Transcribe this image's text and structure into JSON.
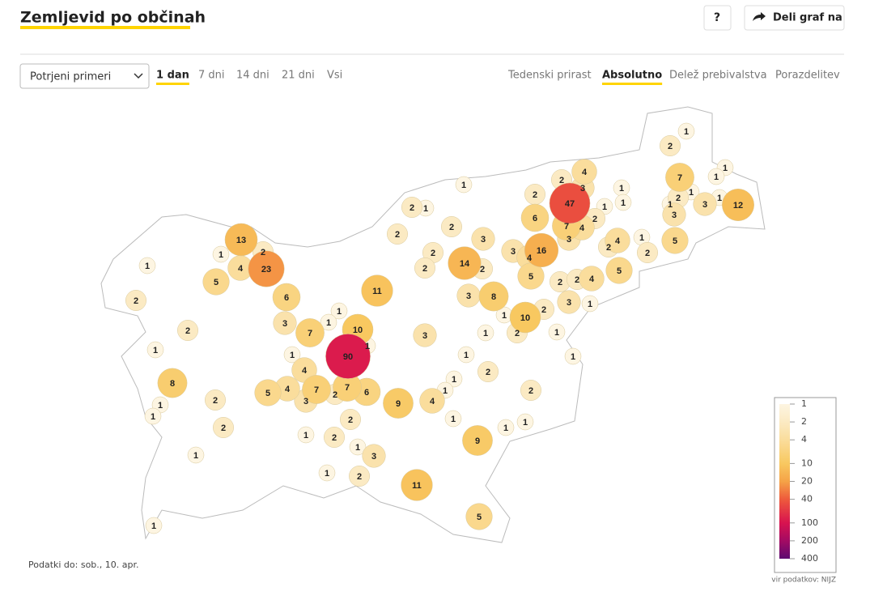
{
  "header": {
    "title": "Zemljevid po občinah",
    "help_button": "?",
    "share_button": "Deli graf na"
  },
  "controls": {
    "dropdown": "Potrjeni primeri",
    "periods": [
      "1 dan",
      "7 dni",
      "14 dni",
      "21 dni",
      "Vsi"
    ],
    "active_period": 0,
    "modes": [
      "Tedenski prirast",
      "Absolutno",
      "Delež prebivalstva",
      "Porazdelitev"
    ],
    "active_mode": 1
  },
  "map": {
    "region_values": [
      1,
      2,
      1,
      1,
      7,
      4,
      2,
      3,
      1,
      1,
      1,
      2,
      1,
      3,
      1,
      12,
      2,
      47,
      1,
      1,
      2,
      1,
      2,
      6,
      7,
      4,
      3,
      2,
      2,
      3,
      13,
      3,
      1,
      4,
      2,
      5,
      2,
      2,
      3,
      16,
      4,
      2,
      1,
      1,
      4,
      23,
      14,
      2,
      2,
      5,
      5,
      5,
      2,
      2,
      4,
      11,
      2,
      6,
      3,
      8,
      3,
      1,
      2,
      1,
      1,
      1,
      10,
      3,
      2,
      7,
      10,
      3,
      1,
      2,
      1,
      1,
      1,
      90,
      1,
      1,
      1,
      4,
      2,
      8,
      5,
      4,
      7,
      7,
      2,
      6,
      1,
      1,
      3,
      9,
      4,
      2,
      2,
      1,
      1,
      2,
      1,
      1,
      1,
      2,
      1,
      2,
      9,
      1,
      3,
      1,
      1,
      2,
      11,
      5,
      1
    ],
    "legend": {
      "ticks": [
        1,
        2,
        4,
        10,
        20,
        40,
        100,
        200,
        400
      ],
      "colors": [
        "#fdf5e2",
        "#fbeac3",
        "#fadd9c",
        "#f8c860",
        "#f5a347",
        "#ee5a3c",
        "#d8134f",
        "#a30b63",
        "#5d0a70"
      ]
    }
  },
  "footer": {
    "data_date": "Podatki do: sob., 10. apr.",
    "source": "vir podatkov: NIJZ"
  }
}
